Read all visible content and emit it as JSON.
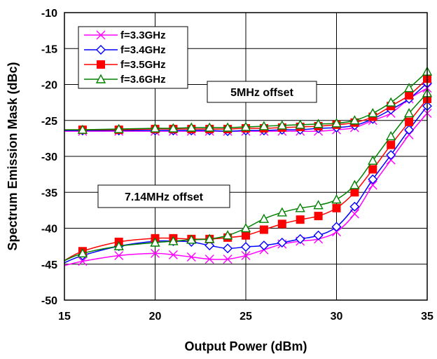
{
  "chart_data": {
    "type": "line",
    "xlabel": "Output Power (dBm)",
    "ylabel": "Spectrum Emission Mask (dBc)",
    "xlim": [
      15,
      35
    ],
    "ylim": [
      -50,
      -10
    ],
    "xticks": [
      15,
      20,
      25,
      30,
      35
    ],
    "yticks": [
      -10,
      -15,
      -20,
      -25,
      -30,
      -35,
      -40,
      -45,
      -50
    ],
    "grid": true,
    "legend_position": "top-left",
    "series": [
      {
        "name": "f=3.3GHz",
        "color": "#ff00ff",
        "marker": "x",
        "groups": [
          {
            "label": "5MHz offset",
            "x": [
              15,
              16,
              18,
              20,
              21,
              22,
              23,
              24,
              25,
              26,
              27,
              28,
              29,
              30,
              31,
              32,
              33,
              34,
              35
            ],
            "y": [
              -26.5,
              -26.5,
              -26.5,
              -26.5,
              -26.5,
              -26.5,
              -26.5,
              -26.5,
              -26.5,
              -26.5,
              -26.5,
              -26.5,
              -26.5,
              -26.3,
              -26.0,
              -25.0,
              -24.0,
              -22.0,
              -20.5
            ]
          },
          {
            "label": "7.14MHz offset",
            "x": [
              15,
              16,
              18,
              20,
              21,
              22,
              23,
              24,
              25,
              26,
              27,
              28,
              29,
              30,
              31,
              32,
              33,
              34,
              35
            ],
            "y": [
              -45.2,
              -44.6,
              -43.8,
              -43.5,
              -43.7,
              -44.0,
              -44.3,
              -44.3,
              -43.8,
              -43.0,
              -42.2,
              -41.8,
              -41.5,
              -40.5,
              -38.0,
              -34.0,
              -30.5,
              -27.0,
              -24.0
            ]
          }
        ]
      },
      {
        "name": "f=3.4GHz",
        "color": "#0000ff",
        "marker": "diamond",
        "groups": [
          {
            "label": "5MHz offset",
            "x": [
              15,
              16,
              18,
              20,
              21,
              22,
              23,
              24,
              25,
              26,
              27,
              28,
              29,
              30,
              31,
              32,
              33,
              34,
              35
            ],
            "y": [
              -26.4,
              -26.4,
              -26.4,
              -26.4,
              -26.4,
              -26.4,
              -26.4,
              -26.5,
              -26.4,
              -26.4,
              -26.3,
              -26.3,
              -26.1,
              -26.0,
              -25.7,
              -24.8,
              -23.5,
              -22.0,
              -19.8
            ]
          },
          {
            "label": "7.14MHz offset",
            "x": [
              15,
              16,
              18,
              20,
              21,
              22,
              23,
              24,
              25,
              26,
              27,
              28,
              29,
              30,
              31,
              32,
              33,
              34,
              35
            ],
            "y": [
              -44.8,
              -43.8,
              -42.5,
              -41.8,
              -41.8,
              -41.9,
              -42.4,
              -42.8,
              -42.6,
              -42.4,
              -42.0,
              -41.5,
              -41.0,
              -39.8,
              -37.0,
              -33.2,
              -29.8,
              -26.3,
              -23.0
            ]
          }
        ]
      },
      {
        "name": "f=3.5GHz",
        "color": "#ff0000",
        "marker": "square",
        "groups": [
          {
            "label": "5MHz offset",
            "x": [
              15,
              16,
              18,
              20,
              21,
              22,
              23,
              24,
              25,
              26,
              27,
              28,
              29,
              30,
              31,
              32,
              33,
              34,
              35
            ],
            "y": [
              -26.3,
              -26.3,
              -26.3,
              -26.2,
              -26.2,
              -26.2,
              -26.2,
              -26.2,
              -26.1,
              -26.1,
              -26.0,
              -25.9,
              -25.8,
              -25.6,
              -25.3,
              -24.5,
              -23.0,
              -21.5,
              -19.2
            ]
          },
          {
            "label": "7.14MHz offset",
            "x": [
              15,
              16,
              18,
              20,
              21,
              22,
              23,
              24,
              25,
              26,
              27,
              28,
              29,
              30,
              31,
              32,
              33,
              34,
              35
            ],
            "y": [
              -44.5,
              -43.2,
              -41.9,
              -41.4,
              -41.4,
              -41.5,
              -41.5,
              -41.3,
              -41.0,
              -40.2,
              -39.4,
              -38.8,
              -38.3,
              -37.2,
              -35.0,
              -31.8,
              -28.4,
              -25.2,
              -22.0
            ]
          }
        ]
      },
      {
        "name": "f=3.6GHz",
        "color": "#008000",
        "marker": "triangle",
        "groups": [
          {
            "label": "5MHz offset",
            "x": [
              15,
              16,
              18,
              20,
              21,
              22,
              23,
              24,
              25,
              26,
              27,
              28,
              29,
              30,
              31,
              32,
              33,
              34,
              35
            ],
            "y": [
              -26.3,
              -26.3,
              -26.2,
              -26.1,
              -26.1,
              -26.0,
              -26.0,
              -26.0,
              -25.9,
              -25.8,
              -25.7,
              -25.6,
              -25.5,
              -25.4,
              -25.0,
              -24.0,
              -22.5,
              -20.5,
              -18.2
            ]
          },
          {
            "label": "7.14MHz offset",
            "x": [
              15,
              16,
              18,
              20,
              21,
              22,
              23,
              24,
              25,
              26,
              27,
              28,
              29,
              30,
              31,
              32,
              33,
              34,
              35
            ],
            "y": [
              -44.5,
              -43.5,
              -42.5,
              -42.0,
              -41.8,
              -41.6,
              -41.5,
              -41.0,
              -40.0,
              -38.7,
              -37.8,
              -37.2,
              -36.8,
              -36.0,
              -34.0,
              -30.6,
              -27.2,
              -24.0,
              -21.2
            ]
          }
        ]
      }
    ],
    "annotations": [
      "5MHz offset",
      "7.14MHz offset"
    ]
  }
}
